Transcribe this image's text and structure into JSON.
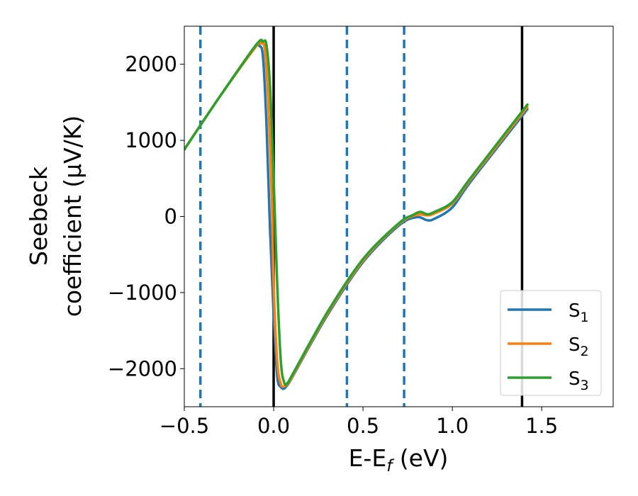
{
  "chart_data": {
    "type": "line",
    "xlabel_main": "E-E",
    "xlabel_sub": "f",
    "xlabel_unit": " (eV)",
    "ylabel_line1": "Seebeck",
    "ylabel_line2": "coefficient  (μV/K)",
    "xlim": [
      -0.5,
      1.9
    ],
    "ylim": [
      -2500,
      2500
    ],
    "x_ticks": [
      {
        "value": -0.5,
        "label": "−0.5"
      },
      {
        "value": 0.0,
        "label": "0.0"
      },
      {
        "value": 0.5,
        "label": "0.5"
      },
      {
        "value": 1.0,
        "label": "1.0"
      },
      {
        "value": 1.5,
        "label": "1.5"
      }
    ],
    "y_ticks": [
      {
        "value": 2000,
        "label": "2000"
      },
      {
        "value": 1000,
        "label": "1000"
      },
      {
        "value": 0,
        "label": "0"
      },
      {
        "value": -1000,
        "label": "−1000"
      },
      {
        "value": -2000,
        "label": "−2000"
      }
    ],
    "vlines_solid": [
      0.0,
      1.39
    ],
    "vlines_dashed": [
      -0.41,
      0.41,
      0.73
    ],
    "grid": false,
    "legend_position": "bottom-right",
    "series": [
      {
        "name": "S",
        "sub": "1",
        "color": "#1f77b4",
        "x": [
          -0.5,
          -0.3,
          -0.1,
          -0.08,
          -0.06,
          -0.04,
          -0.02,
          0.0,
          0.02,
          0.04,
          0.06,
          0.08,
          0.1,
          0.3,
          0.5,
          0.7,
          0.8,
          0.86,
          0.9,
          1.0,
          1.1,
          1.42
        ],
        "y": [
          880,
          1580,
          2230,
          2240,
          2100,
          1200,
          -200,
          -1300,
          -2100,
          -2240,
          -2260,
          -2200,
          -2130,
          -1300,
          -600,
          -120,
          -10,
          -50,
          -30,
          120,
          450,
          1410
        ]
      },
      {
        "name": "S",
        "sub": "2",
        "color": "#ff7f0e",
        "x": [
          -0.5,
          -0.3,
          -0.1,
          -0.07,
          -0.05,
          -0.03,
          -0.01,
          0.0,
          0.02,
          0.04,
          0.06,
          0.08,
          0.1,
          0.3,
          0.5,
          0.7,
          0.8,
          0.86,
          0.9,
          1.0,
          1.1,
          1.42
        ],
        "y": [
          880,
          1580,
          2230,
          2270,
          2200,
          1500,
          200,
          -900,
          -1900,
          -2200,
          -2230,
          -2190,
          -2120,
          -1280,
          -580,
          -100,
          20,
          15,
          40,
          170,
          480,
          1440
        ]
      },
      {
        "name": "S",
        "sub": "3",
        "color": "#2ca02c",
        "x": [
          -0.5,
          -0.3,
          -0.1,
          -0.06,
          -0.04,
          -0.02,
          0.0,
          0.02,
          0.04,
          0.06,
          0.08,
          0.1,
          0.3,
          0.5,
          0.7,
          0.78,
          0.82,
          0.86,
          0.9,
          1.0,
          1.1,
          1.42
        ],
        "y": [
          880,
          1580,
          2250,
          2300,
          2250,
          1700,
          500,
          -900,
          -1900,
          -2190,
          -2180,
          -2100,
          -1260,
          -560,
          -90,
          20,
          60,
          30,
          60,
          190,
          500,
          1470
        ]
      }
    ]
  }
}
